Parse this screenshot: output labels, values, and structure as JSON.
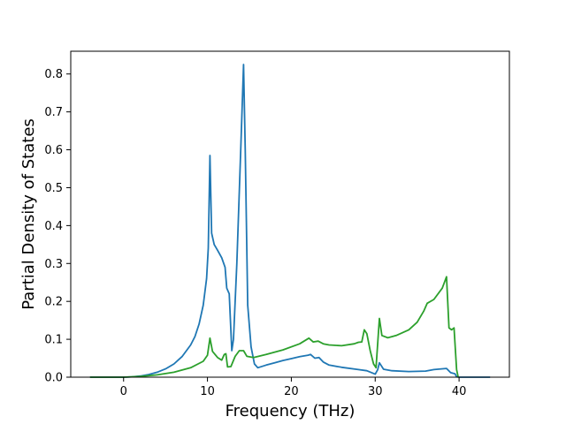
{
  "chart_data": {
    "type": "line",
    "xlabel": "Frequency (THz)",
    "ylabel": "Partial Density of States",
    "xlim": [
      -6.3,
      46.0
    ],
    "ylim": [
      0,
      0.86
    ],
    "xticks": [
      0,
      10,
      20,
      30,
      40
    ],
    "yticks": [
      0.0,
      0.1,
      0.2,
      0.3,
      0.4,
      0.5,
      0.6,
      0.7,
      0.8
    ],
    "ytick_labels": [
      "0.0",
      "0.1",
      "0.2",
      "0.3",
      "0.4",
      "0.5",
      "0.6",
      "0.7",
      "0.8"
    ],
    "grid": false,
    "series": [
      {
        "color": "#1f77b4",
        "points": [
          [
            -4.0,
            0.0
          ],
          [
            0.0,
            0.0
          ],
          [
            1.0,
            0.001
          ],
          [
            2.0,
            0.003
          ],
          [
            3.0,
            0.007
          ],
          [
            4.0,
            0.013
          ],
          [
            5.0,
            0.022
          ],
          [
            6.0,
            0.035
          ],
          [
            7.0,
            0.055
          ],
          [
            8.0,
            0.085
          ],
          [
            8.5,
            0.107
          ],
          [
            9.0,
            0.14
          ],
          [
            9.5,
            0.19
          ],
          [
            9.9,
            0.26
          ],
          [
            10.1,
            0.34
          ],
          [
            10.3,
            0.585
          ],
          [
            10.5,
            0.38
          ],
          [
            10.8,
            0.35
          ],
          [
            11.2,
            0.335
          ],
          [
            11.7,
            0.315
          ],
          [
            12.1,
            0.29
          ],
          [
            12.3,
            0.235
          ],
          [
            12.6,
            0.22
          ],
          [
            12.9,
            0.07
          ],
          [
            13.1,
            0.1
          ],
          [
            13.5,
            0.3
          ],
          [
            14.0,
            0.62
          ],
          [
            14.3,
            0.825
          ],
          [
            14.5,
            0.6
          ],
          [
            14.8,
            0.19
          ],
          [
            15.2,
            0.08
          ],
          [
            15.6,
            0.035
          ],
          [
            16.0,
            0.025
          ],
          [
            17.0,
            0.032
          ],
          [
            18.0,
            0.038
          ],
          [
            19.0,
            0.044
          ],
          [
            20.0,
            0.049
          ],
          [
            21.0,
            0.054
          ],
          [
            22.0,
            0.058
          ],
          [
            22.3,
            0.06
          ],
          [
            22.8,
            0.05
          ],
          [
            23.3,
            0.052
          ],
          [
            23.8,
            0.04
          ],
          [
            24.5,
            0.032
          ],
          [
            26.0,
            0.026
          ],
          [
            28.0,
            0.02
          ],
          [
            29.0,
            0.017
          ],
          [
            30.0,
            0.008
          ],
          [
            30.3,
            0.02
          ],
          [
            30.5,
            0.038
          ],
          [
            31.0,
            0.021
          ],
          [
            32.0,
            0.017
          ],
          [
            34.0,
            0.015
          ],
          [
            36.0,
            0.016
          ],
          [
            37.0,
            0.02
          ],
          [
            38.5,
            0.023
          ],
          [
            39.0,
            0.012
          ],
          [
            39.5,
            0.009
          ],
          [
            39.7,
            0.001
          ],
          [
            40.0,
            0.0
          ],
          [
            43.7,
            0.0
          ]
        ]
      },
      {
        "color": "#2ca02c",
        "points": [
          [
            -4.0,
            0.0
          ],
          [
            0.0,
            0.0
          ],
          [
            2.0,
            0.002
          ],
          [
            4.0,
            0.006
          ],
          [
            6.0,
            0.013
          ],
          [
            8.0,
            0.025
          ],
          [
            9.5,
            0.042
          ],
          [
            10.0,
            0.058
          ],
          [
            10.3,
            0.103
          ],
          [
            10.6,
            0.068
          ],
          [
            11.2,
            0.052
          ],
          [
            11.7,
            0.045
          ],
          [
            12.0,
            0.06
          ],
          [
            12.2,
            0.062
          ],
          [
            12.4,
            0.027
          ],
          [
            12.8,
            0.028
          ],
          [
            13.3,
            0.055
          ],
          [
            13.8,
            0.07
          ],
          [
            14.3,
            0.07
          ],
          [
            14.7,
            0.055
          ],
          [
            15.5,
            0.052
          ],
          [
            17.0,
            0.06
          ],
          [
            19.0,
            0.072
          ],
          [
            21.0,
            0.088
          ],
          [
            22.1,
            0.103
          ],
          [
            22.6,
            0.093
          ],
          [
            23.2,
            0.095
          ],
          [
            23.8,
            0.088
          ],
          [
            24.5,
            0.085
          ],
          [
            26.0,
            0.083
          ],
          [
            27.5,
            0.088
          ],
          [
            28.0,
            0.092
          ],
          [
            28.4,
            0.093
          ],
          [
            28.7,
            0.125
          ],
          [
            29.0,
            0.115
          ],
          [
            29.4,
            0.07
          ],
          [
            29.8,
            0.035
          ],
          [
            30.1,
            0.025
          ],
          [
            30.3,
            0.09
          ],
          [
            30.5,
            0.155
          ],
          [
            30.8,
            0.11
          ],
          [
            31.5,
            0.104
          ],
          [
            32.5,
            0.11
          ],
          [
            34.0,
            0.125
          ],
          [
            35.0,
            0.145
          ],
          [
            35.8,
            0.175
          ],
          [
            36.2,
            0.195
          ],
          [
            37.0,
            0.205
          ],
          [
            38.0,
            0.235
          ],
          [
            38.5,
            0.265
          ],
          [
            38.8,
            0.13
          ],
          [
            39.1,
            0.125
          ],
          [
            39.4,
            0.13
          ],
          [
            39.7,
            0.02
          ],
          [
            39.9,
            0.0
          ]
        ]
      }
    ]
  }
}
